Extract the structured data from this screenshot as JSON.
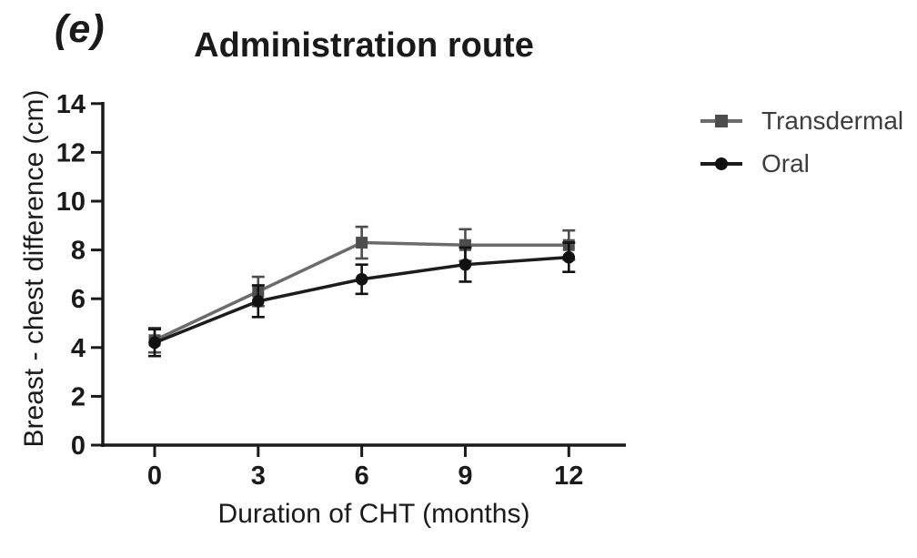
{
  "figure": {
    "panel_label": "(e)"
  },
  "chart_data": {
    "type": "line",
    "title": "Administration route",
    "xlabel": "Duration of CHT (months)",
    "ylabel": "Breast - chest difference (cm)",
    "x": [
      0,
      3,
      6,
      9,
      12
    ],
    "xticks": [
      "0",
      "3",
      "6",
      "9",
      "12"
    ],
    "yticks": [
      "0",
      "2",
      "4",
      "6",
      "8",
      "10",
      "12",
      "14"
    ],
    "xlim": [
      -1.6,
      13.7
    ],
    "ylim": [
      0,
      14
    ],
    "grid": false,
    "legend_position": "right-outside",
    "error_bars": "symmetric, cap width ~14px",
    "series": [
      {
        "name": "Transdermal",
        "marker": "square",
        "line_color": "#6b6b6b",
        "marker_color": "#4d4d4d",
        "values": [
          4.3,
          6.3,
          8.3,
          8.2,
          8.2
        ],
        "errors": [
          0.5,
          0.6,
          0.65,
          0.65,
          0.6
        ]
      },
      {
        "name": "Oral",
        "marker": "circle",
        "line_color": "#1c1c1c",
        "marker_color": "#111111",
        "values": [
          4.2,
          5.9,
          6.8,
          7.4,
          7.7
        ],
        "errors": [
          0.55,
          0.65,
          0.6,
          0.7,
          0.6
        ]
      }
    ],
    "axis_color": "#1a1a1a",
    "text_color": "#1a1a1a",
    "legend_text_color": "#3d3d3d"
  }
}
